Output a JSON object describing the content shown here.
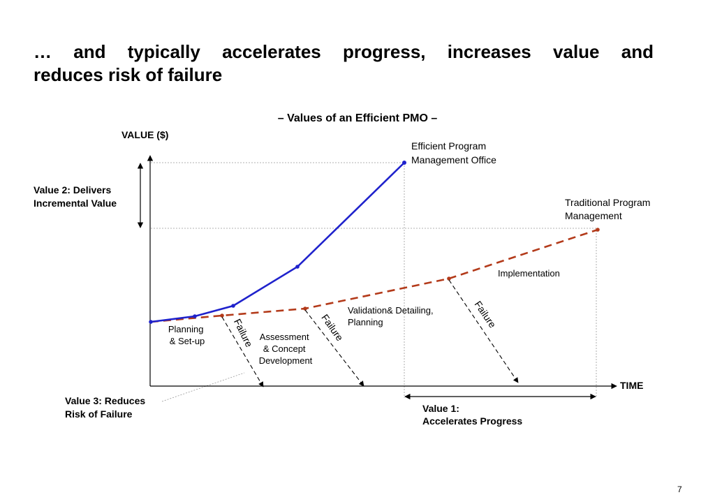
{
  "slide": {
    "title_line1": "… and typically accelerates progress, increases value and",
    "title_line2": "reduces risk of failure",
    "page_number": "7"
  },
  "diagram": {
    "subtitle": "– Values of an Efficient PMO –",
    "y_axis_label": "VALUE ($)",
    "x_axis_label": "TIME",
    "colors": {
      "efficient_line": "#1f22cc",
      "traditional_line": "#b33a1a",
      "axis": "#000000",
      "guide": "#999999"
    },
    "series": {
      "efficient": [
        "Efficient Program",
        "Management Office"
      ],
      "traditional": [
        "Traditional Program",
        "Management"
      ]
    },
    "phases": {
      "planning": [
        "Planning",
        "& Set-up"
      ],
      "assessment": [
        "Assessment",
        "& Concept",
        "Development"
      ],
      "validation": [
        "Validation& Detailing,",
        "Planning"
      ],
      "implementation": "Implementation"
    },
    "failure_label": "Failure",
    "values": {
      "value1": [
        "Value 1:",
        "Accelerates Progress"
      ],
      "value2": [
        "Value 2: Delivers",
        "Incremental Value"
      ],
      "value3": [
        "Value 3: Reduces",
        "Risk of Failure"
      ]
    }
  }
}
